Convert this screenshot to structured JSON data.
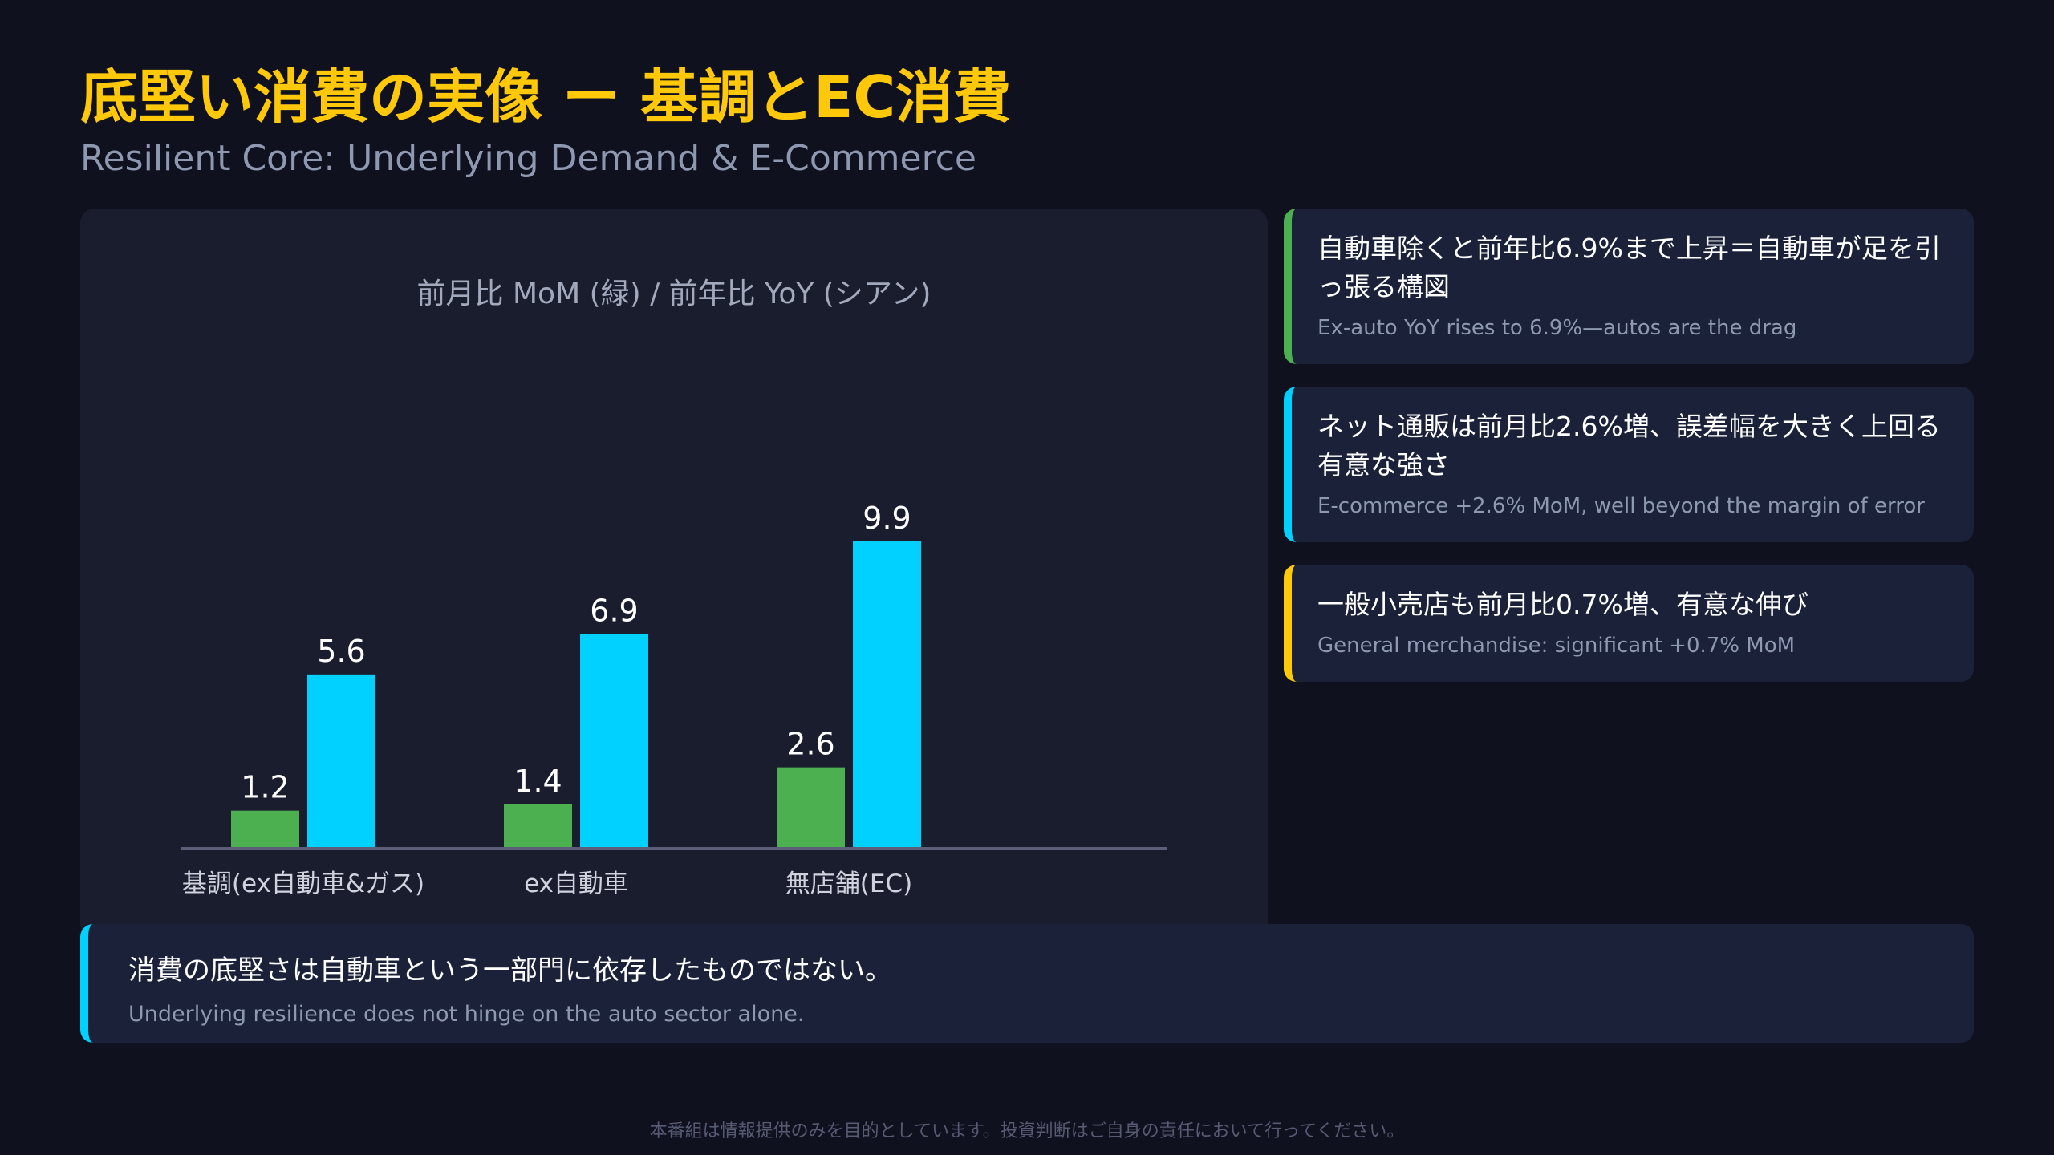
{
  "header": {
    "title": "底堅い消費の実像 ー 基調とEC消費",
    "subtitle": "Resilient Core: Underlying Demand & E-Commerce"
  },
  "chart_data": {
    "type": "bar",
    "title": "前月比 MoM (緑) / 前年比 YoY (シアン)",
    "categories": [
      "基調(ex自動車&ガス)",
      "ex自動車",
      "無店舗(EC)"
    ],
    "series": [
      {
        "values": [
          1.2,
          1.4,
          2.6
        ],
        "color": "#4caf50"
      },
      {
        "values": [
          5.6,
          6.9,
          9.9
        ],
        "color": "#00d1ff"
      }
    ],
    "ylim": [
      0,
      10
    ],
    "grid": false,
    "legend": "none"
  },
  "cards": [
    {
      "title": "自動車除くと前年比6.9%まで上昇＝自動車が足を引っ張る構図",
      "subtitle": "Ex-auto YoY rises to 6.9%—autos are the drag",
      "accent": "#4caf50"
    },
    {
      "title": "ネット通販は前月比2.6%増、誤差幅を大きく上回る有意な強さ",
      "subtitle": "E-commerce +2.6% MoM, well beyond the margin of error",
      "accent": "#00d1ff"
    },
    {
      "title": "一般小売店も前月比0.7%増、有意な伸び",
      "subtitle": "General merchandise: significant +0.7% MoM",
      "accent": "#ffc90a"
    }
  ],
  "summary": {
    "title": "消費の底堅さは自動車という一部門に依存したものではない。",
    "subtitle": "Underlying resilience does not hinge on the auto sector alone."
  },
  "footer": {
    "disclaimer": "本番組は情報提供のみを目的としています。投資判断はご自身の責任において行ってください。"
  }
}
